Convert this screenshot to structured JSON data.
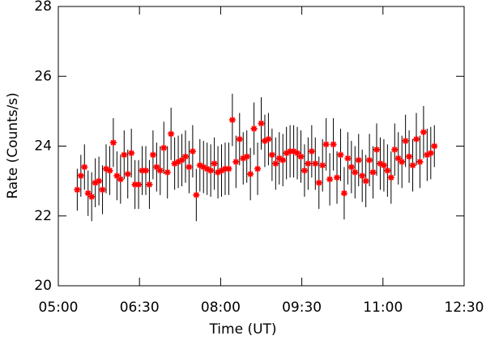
{
  "chart_data": {
    "type": "scatter",
    "x_label": "Time (UT)",
    "y_label": "Rate (Counts/s)",
    "x": [
      321,
      325,
      329,
      333,
      337,
      341,
      345,
      349,
      353,
      357,
      361,
      365,
      369,
      373,
      377,
      381,
      385,
      389,
      393,
      397,
      401,
      405,
      409,
      413,
      417,
      421,
      425,
      429,
      433,
      437,
      441,
      445,
      449,
      453,
      457,
      461,
      465,
      469,
      473,
      477,
      481,
      485,
      489,
      493,
      497,
      501,
      505,
      509,
      513,
      517,
      521,
      525,
      529,
      533,
      537,
      541,
      545,
      549,
      553,
      557,
      561,
      565,
      569,
      573,
      577,
      581,
      585,
      589,
      593,
      597,
      601,
      605,
      609,
      613,
      617,
      621,
      625,
      629,
      633,
      637,
      641,
      645,
      649,
      653,
      657,
      661,
      665,
      669,
      673,
      677,
      681,
      685,
      689,
      693,
      697,
      701,
      705,
      709,
      713,
      717
    ],
    "series": [
      {
        "color": "#ff0000",
        "error_color": "#000000",
        "values": [
          22.75,
          23.15,
          23.4,
          22.65,
          22.55,
          22.95,
          23.0,
          22.75,
          23.35,
          23.3,
          24.1,
          23.15,
          23.05,
          23.75,
          23.2,
          23.8,
          22.9,
          22.9,
          23.3,
          23.3,
          22.9,
          23.75,
          23.4,
          23.3,
          23.95,
          23.25,
          24.35,
          23.5,
          23.55,
          23.6,
          23.7,
          23.4,
          23.85,
          22.6,
          23.45,
          23.4,
          23.35,
          23.3,
          23.5,
          23.25,
          23.3,
          23.35,
          23.35,
          24.75,
          23.55,
          24.2,
          23.65,
          23.7,
          23.2,
          24.5,
          23.35,
          24.65,
          24.15,
          24.2,
          23.75,
          23.5,
          23.65,
          23.6,
          23.8,
          23.85,
          23.85,
          23.8,
          23.7,
          23.3,
          23.5,
          23.85,
          23.5,
          22.95,
          23.45,
          24.05,
          23.05,
          24.05,
          23.1,
          23.75,
          22.65,
          23.65,
          23.4,
          23.25,
          23.6,
          23.15,
          23.0,
          23.6,
          23.25,
          23.9,
          23.5,
          23.45,
          23.3,
          23.1,
          23.9,
          23.65,
          23.55,
          24.15,
          23.7,
          23.45,
          24.2,
          23.55,
          24.4,
          23.75,
          23.8,
          24.0
        ],
        "errors": [
          0.6,
          0.6,
          0.65,
          0.65,
          0.7,
          0.7,
          0.7,
          0.7,
          0.7,
          0.7,
          0.7,
          0.7,
          0.7,
          0.7,
          0.7,
          0.7,
          0.7,
          0.7,
          0.7,
          0.7,
          0.7,
          0.7,
          0.7,
          0.7,
          0.75,
          0.75,
          0.75,
          0.75,
          0.75,
          0.75,
          0.75,
          0.75,
          0.75,
          0.75,
          0.75,
          0.75,
          0.75,
          0.75,
          0.75,
          0.75,
          0.75,
          0.75,
          0.75,
          0.75,
          0.75,
          0.75,
          0.75,
          0.75,
          0.75,
          0.75,
          0.75,
          0.75,
          0.75,
          0.75,
          0.75,
          0.75,
          0.75,
          0.75,
          0.75,
          0.75,
          0.75,
          0.75,
          0.75,
          0.75,
          0.75,
          0.75,
          0.75,
          0.75,
          0.75,
          0.75,
          0.75,
          0.75,
          0.75,
          0.75,
          0.75,
          0.75,
          0.75,
          0.75,
          0.75,
          0.75,
          0.75,
          0.75,
          0.75,
          0.75,
          0.75,
          0.75,
          0.75,
          0.75,
          0.75,
          0.75,
          0.75,
          0.75,
          0.75,
          0.75,
          0.75,
          0.75,
          0.75,
          0.75,
          0.75,
          0.6
        ]
      }
    ],
    "xlim": [
      300,
      750
    ],
    "xticks": [
      {
        "value": 300,
        "label": "05:00"
      },
      {
        "value": 390,
        "label": "06:30"
      },
      {
        "value": 480,
        "label": "08:00"
      },
      {
        "value": 570,
        "label": "09:30"
      },
      {
        "value": 660,
        "label": "11:00"
      },
      {
        "value": 750,
        "label": "12:30"
      }
    ],
    "ylim": [
      20,
      28
    ],
    "yticks": [
      20,
      22,
      24,
      26,
      28
    ]
  }
}
